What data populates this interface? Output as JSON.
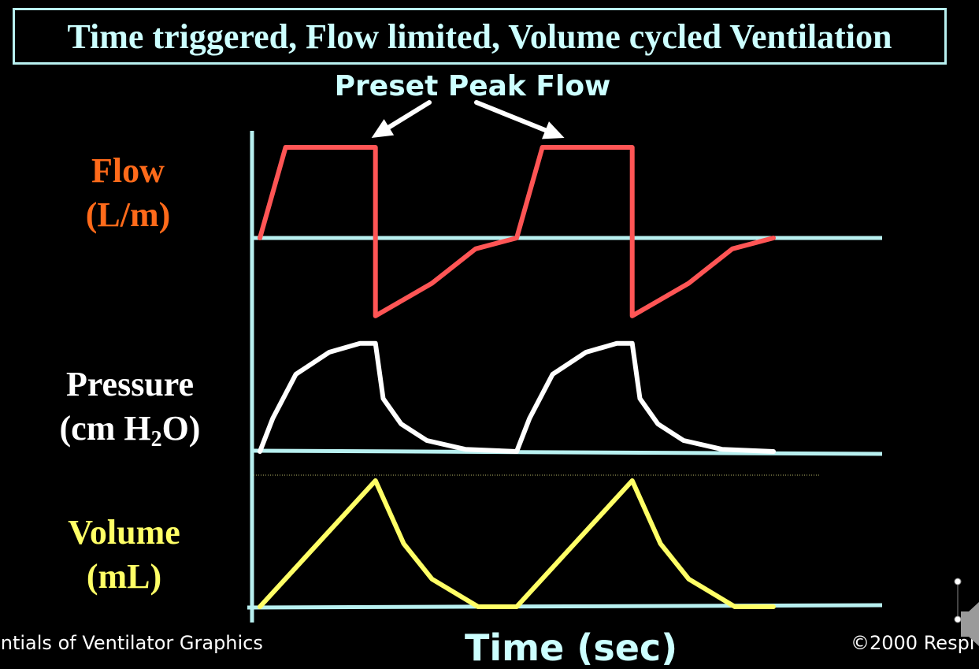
{
  "slide": {
    "title": "Time triggered, Flow limited, Volume cycled Ventilation",
    "footer_left": "entials of Ventilator Graphics",
    "footer_center": "Time (sec)",
    "footer_right": "©2000 Respi"
  },
  "colors": {
    "background": "#000000",
    "title": "#ccffff",
    "axis": "#b8f0f0",
    "flow": "#ff5555",
    "flow_label": "#ff6a1a",
    "pressure": "#ffffff",
    "volume": "#ffff66"
  },
  "chart_data": {
    "type": "line",
    "annotation": "Preset Peak Flow",
    "xlabel": "Time (sec)",
    "cycles": 2,
    "panels": [
      {
        "name": "flow",
        "label_line1": "Flow",
        "label_line2": "(L/m)",
        "color": "#ff5555",
        "points": [
          [
            0,
            0
          ],
          [
            0.1,
            1
          ],
          [
            0.45,
            1
          ],
          [
            0.45,
            -0.86
          ],
          [
            0.67,
            -0.5
          ],
          [
            0.84,
            -0.12
          ],
          [
            1,
            0
          ],
          [
            1.1,
            1
          ],
          [
            1.45,
            1
          ],
          [
            1.45,
            -0.86
          ],
          [
            1.67,
            -0.5
          ],
          [
            1.84,
            -0.12
          ],
          [
            2,
            0
          ]
        ]
      },
      {
        "name": "pressure",
        "label_line1": "Pressure",
        "label_line2_prefix": "(cm H",
        "label_line2_sub": "2",
        "label_line2_suffix": "O)",
        "color": "#ffffff",
        "points": [
          [
            0,
            0
          ],
          [
            0.05,
            0.3
          ],
          [
            0.14,
            0.7
          ],
          [
            0.27,
            0.9
          ],
          [
            0.39,
            0.98
          ],
          [
            0.45,
            0.98
          ],
          [
            0.48,
            0.48
          ],
          [
            0.55,
            0.25
          ],
          [
            0.65,
            0.1
          ],
          [
            0.8,
            0.02
          ],
          [
            1,
            0
          ],
          [
            1.05,
            0.3
          ],
          [
            1.14,
            0.7
          ],
          [
            1.27,
            0.9
          ],
          [
            1.39,
            0.98
          ],
          [
            1.45,
            0.98
          ],
          [
            1.48,
            0.48
          ],
          [
            1.55,
            0.25
          ],
          [
            1.65,
            0.1
          ],
          [
            1.8,
            0.02
          ],
          [
            2,
            0
          ]
        ]
      },
      {
        "name": "volume",
        "label_line1": "Volume",
        "label_line2": "(mL)",
        "color": "#ffff66",
        "points": [
          [
            0,
            0
          ],
          [
            0.45,
            1
          ],
          [
            0.56,
            0.5
          ],
          [
            0.67,
            0.22
          ],
          [
            0.85,
            0
          ],
          [
            1,
            0
          ],
          [
            1.45,
            1
          ],
          [
            1.56,
            0.5
          ],
          [
            1.67,
            0.22
          ],
          [
            1.85,
            0
          ],
          [
            2,
            0
          ]
        ]
      }
    ]
  }
}
